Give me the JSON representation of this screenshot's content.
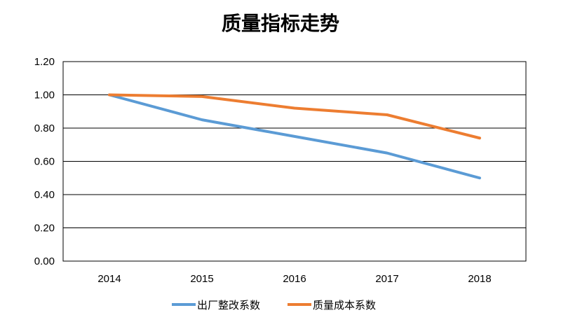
{
  "chart_data": {
    "type": "line",
    "title": "质量指标走势",
    "xlabel": "",
    "ylabel": "",
    "categories": [
      "2014",
      "2015",
      "2016",
      "2017",
      "2018"
    ],
    "ylim": [
      0,
      1.2
    ],
    "yticks": [
      "0.00",
      "0.20",
      "0.40",
      "0.60",
      "0.80",
      "1.00",
      "1.20"
    ],
    "grid": true,
    "legend": "bottom",
    "series": [
      {
        "name": "出厂整改系数",
        "color": "#5B9BD5",
        "values": [
          1.0,
          0.85,
          0.75,
          0.65,
          0.5
        ]
      },
      {
        "name": "质量成本系数",
        "color": "#ED7D31",
        "values": [
          1.0,
          0.99,
          0.92,
          0.88,
          0.74
        ]
      }
    ]
  }
}
